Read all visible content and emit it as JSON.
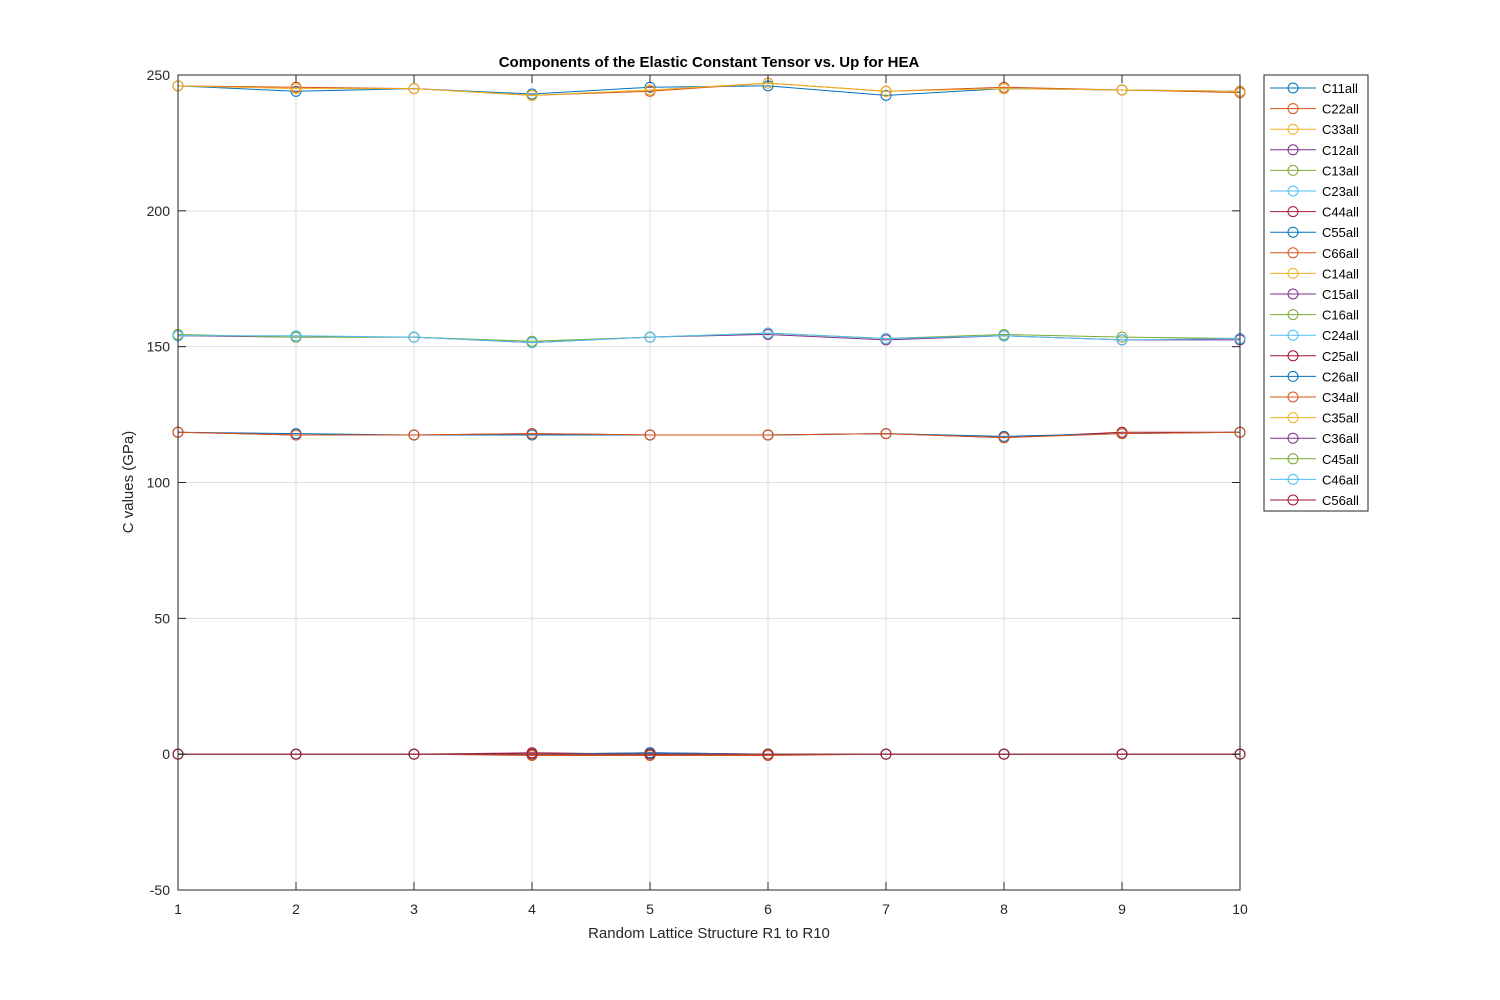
{
  "chart_data": {
    "type": "line",
    "title": "Components of the Elastic Constant Tensor vs. Up for HEA",
    "xlabel": "Random Lattice Structure R1 to R10",
    "ylabel": "C values (GPa)",
    "xlim": [
      1,
      10
    ],
    "ylim": [
      -50,
      250
    ],
    "xticks": [
      1,
      2,
      3,
      4,
      5,
      6,
      7,
      8,
      9,
      10
    ],
    "yticks": [
      -50,
      0,
      50,
      100,
      150,
      200,
      250
    ],
    "grid": true,
    "legend_position": "outside-right",
    "marker": "open-circle",
    "x": [
      1,
      2,
      3,
      4,
      5,
      6,
      7,
      8,
      9,
      10
    ],
    "series": [
      {
        "name": "C11all",
        "color": "#0072BD",
        "values": [
          246,
          244,
          245,
          243,
          245.5,
          246,
          242.5,
          245,
          244.5,
          244
        ]
      },
      {
        "name": "C22all",
        "color": "#D95319",
        "values": [
          246,
          245.5,
          245,
          242.5,
          244,
          247,
          244,
          245.5,
          244.5,
          243.5
        ]
      },
      {
        "name": "C33all",
        "color": "#EDB120",
        "values": [
          246,
          245,
          245,
          242.5,
          244.5,
          247,
          244,
          245,
          244.5,
          244
        ]
      },
      {
        "name": "C12all",
        "color": "#7E2F8E",
        "values": [
          154,
          153.5,
          153.5,
          151.5,
          153.5,
          154.5,
          152.5,
          154,
          152.5,
          152.5
        ]
      },
      {
        "name": "C13all",
        "color": "#77AC30",
        "values": [
          154.5,
          153.5,
          153.5,
          152,
          153.5,
          155,
          153,
          154.5,
          153.5,
          153
        ]
      },
      {
        "name": "C23all",
        "color": "#4DBEEE",
        "values": [
          154,
          154,
          153.5,
          151.5,
          153.5,
          155,
          153,
          154,
          152.5,
          153
        ]
      },
      {
        "name": "C44all",
        "color": "#A2142F",
        "values": [
          118.5,
          117.5,
          117.5,
          118,
          117.5,
          117.5,
          118,
          116.5,
          118.5,
          118.5
        ]
      },
      {
        "name": "C55all",
        "color": "#0072BD",
        "values": [
          118.5,
          118,
          117.5,
          117.5,
          117.5,
          117.5,
          118,
          117,
          118,
          118.5
        ]
      },
      {
        "name": "C66all",
        "color": "#D95319",
        "values": [
          118.5,
          117.5,
          117.5,
          118,
          117.5,
          117.5,
          118,
          116.5,
          118,
          118.5
        ]
      },
      {
        "name": "C14all",
        "color": "#EDB120",
        "values": [
          0,
          0,
          0,
          0,
          0,
          0,
          0,
          0,
          0,
          0
        ]
      },
      {
        "name": "C15all",
        "color": "#7E2F8E",
        "values": [
          0,
          0,
          0,
          0,
          0.5,
          0,
          0,
          0,
          0,
          0
        ]
      },
      {
        "name": "C16all",
        "color": "#77AC30",
        "values": [
          0,
          0,
          0,
          0,
          0,
          0,
          0,
          0,
          0,
          0
        ]
      },
      {
        "name": "C24all",
        "color": "#4DBEEE",
        "values": [
          0,
          0,
          0,
          0,
          0,
          0,
          0,
          0,
          0,
          0
        ]
      },
      {
        "name": "C25all",
        "color": "#A2142F",
        "values": [
          0,
          0,
          0,
          0.5,
          0,
          0,
          0,
          0,
          0,
          0
        ]
      },
      {
        "name": "C26all",
        "color": "#0072BD",
        "values": [
          0,
          0,
          0,
          0,
          0.5,
          0,
          0,
          0,
          0,
          0
        ]
      },
      {
        "name": "C34all",
        "color": "#D95319",
        "values": [
          0,
          0,
          0,
          -0.5,
          -0.5,
          -0.5,
          0,
          0,
          0,
          0
        ]
      },
      {
        "name": "C35all",
        "color": "#EDB120",
        "values": [
          0,
          0,
          0,
          0,
          0,
          0,
          0,
          0,
          0,
          0
        ]
      },
      {
        "name": "C36all",
        "color": "#7E2F8E",
        "values": [
          0,
          0,
          0,
          0,
          0,
          0,
          0,
          0,
          0,
          0
        ]
      },
      {
        "name": "C45all",
        "color": "#77AC30",
        "values": [
          0,
          0,
          0,
          0,
          0,
          0,
          0,
          0,
          0,
          0
        ]
      },
      {
        "name": "C46all",
        "color": "#4DBEEE",
        "values": [
          0,
          0,
          0,
          0,
          0,
          0,
          0,
          0,
          0,
          0
        ]
      },
      {
        "name": "C56all",
        "color": "#A2142F",
        "values": [
          0,
          0,
          0,
          0,
          0,
          0,
          0,
          0,
          0,
          0
        ]
      }
    ]
  }
}
